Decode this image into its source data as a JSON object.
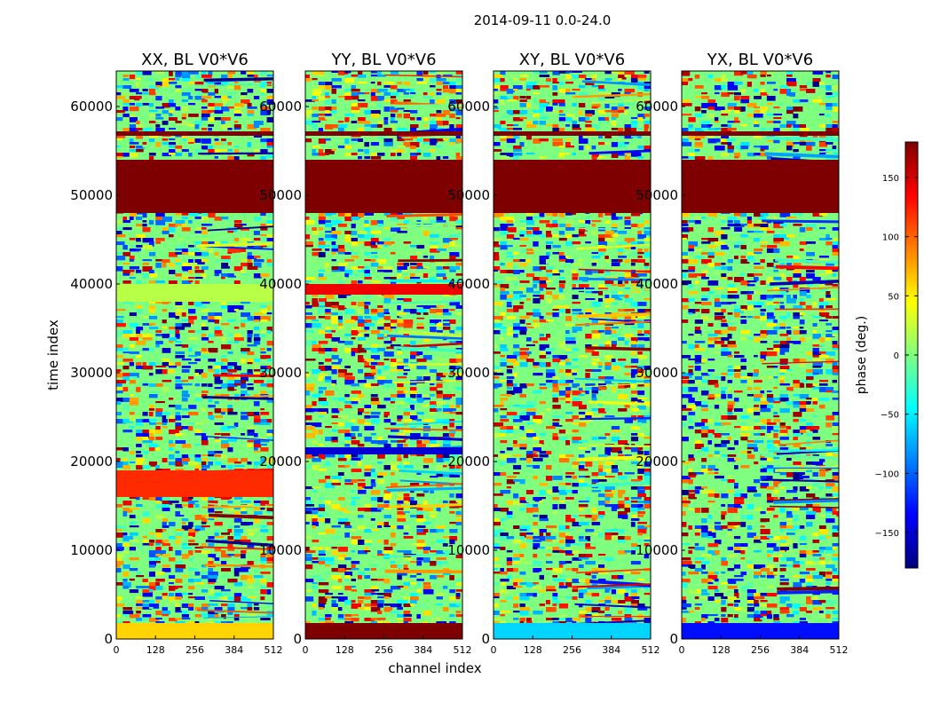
{
  "figure": {
    "suptitle": "2014-09-11 0.0-24.0",
    "xlabel": "channel index",
    "ylabel": "time index"
  },
  "chart_data": [
    {
      "type": "heatmap",
      "title": "XX, BL V0*V6",
      "xlim": [
        0,
        512
      ],
      "ylim": [
        0,
        64000
      ],
      "xticks": [
        "0",
        "128",
        "256",
        "384",
        "512"
      ],
      "yticks": [
        "0",
        "10000",
        "20000",
        "30000",
        "40000",
        "50000",
        "60000"
      ],
      "xtick_values": [
        0,
        128,
        256,
        384,
        512
      ],
      "ytick_values": [
        0,
        10000,
        20000,
        30000,
        40000,
        50000,
        60000
      ],
      "bands": [
        {
          "y0": 0,
          "y1": 1800,
          "phase": 60
        },
        {
          "y0": 48000,
          "y1": 54000,
          "phase": 180
        },
        {
          "y0": 56700,
          "y1": 57200,
          "phase": 180
        },
        {
          "y0": 38000,
          "y1": 40000,
          "phase": 20
        },
        {
          "y0": 16000,
          "y1": 19000,
          "phase": 120
        }
      ]
    },
    {
      "type": "heatmap",
      "title": "YY, BL V0*V6",
      "xlim": [
        0,
        512
      ],
      "ylim": [
        0,
        64000
      ],
      "xticks": [
        "0",
        "128",
        "256",
        "384",
        "512"
      ],
      "yticks": [
        "0",
        "10000",
        "20000",
        "30000",
        "40000",
        "50000",
        "60000"
      ],
      "xtick_values": [
        0,
        128,
        256,
        384,
        512
      ],
      "ytick_values": [
        0,
        10000,
        20000,
        30000,
        40000,
        50000,
        60000
      ],
      "bands": [
        {
          "y0": 0,
          "y1": 1800,
          "phase": 180
        },
        {
          "y0": 48000,
          "y1": 54000,
          "phase": 180
        },
        {
          "y0": 56700,
          "y1": 57200,
          "phase": 180
        },
        {
          "y0": 38800,
          "y1": 40000,
          "phase": 140
        },
        {
          "y0": 20800,
          "y1": 21600,
          "phase": -150
        }
      ]
    },
    {
      "type": "heatmap",
      "title": "XY, BL V0*V6",
      "xlim": [
        0,
        512
      ],
      "ylim": [
        0,
        64000
      ],
      "xticks": [
        "0",
        "128",
        "256",
        "384",
        "512"
      ],
      "yticks": [
        "0",
        "10000",
        "20000",
        "30000",
        "40000",
        "50000",
        "60000"
      ],
      "xtick_values": [
        0,
        128,
        256,
        384,
        512
      ],
      "ytick_values": [
        0,
        10000,
        20000,
        30000,
        40000,
        50000,
        60000
      ],
      "bands": [
        {
          "y0": 0,
          "y1": 1800,
          "phase": -60
        },
        {
          "y0": 48000,
          "y1": 54000,
          "phase": 180
        },
        {
          "y0": 56700,
          "y1": 57200,
          "phase": 180
        }
      ]
    },
    {
      "type": "heatmap",
      "title": "YX, BL V0*V6",
      "xlim": [
        0,
        512
      ],
      "ylim": [
        0,
        64000
      ],
      "xticks": [
        "0",
        "128",
        "256",
        "384",
        "512"
      ],
      "yticks": [
        "0",
        "10000",
        "20000",
        "30000",
        "40000",
        "50000",
        "60000"
      ],
      "xtick_values": [
        0,
        128,
        256,
        384,
        512
      ],
      "ytick_values": [
        0,
        10000,
        20000,
        30000,
        40000,
        50000,
        60000
      ],
      "bands": [
        {
          "y0": 0,
          "y1": 1800,
          "phase": -130
        },
        {
          "y0": 48000,
          "y1": 54000,
          "phase": 180
        },
        {
          "y0": 56700,
          "y1": 57200,
          "phase": 180
        }
      ]
    }
  ],
  "colorbar": {
    "label": "phase (deg.)",
    "range": [
      -180,
      180
    ],
    "ticks": [
      "−150",
      "−100",
      "−50",
      "0",
      "50",
      "100",
      "150"
    ],
    "tick_values": [
      -150,
      -100,
      -50,
      0,
      50,
      100,
      150
    ],
    "colormap": [
      "#00007f",
      "#0000ff",
      "#007fff",
      "#00ffff",
      "#7fff7f",
      "#ffff00",
      "#ff7f00",
      "#ff0000",
      "#7f0000"
    ]
  }
}
